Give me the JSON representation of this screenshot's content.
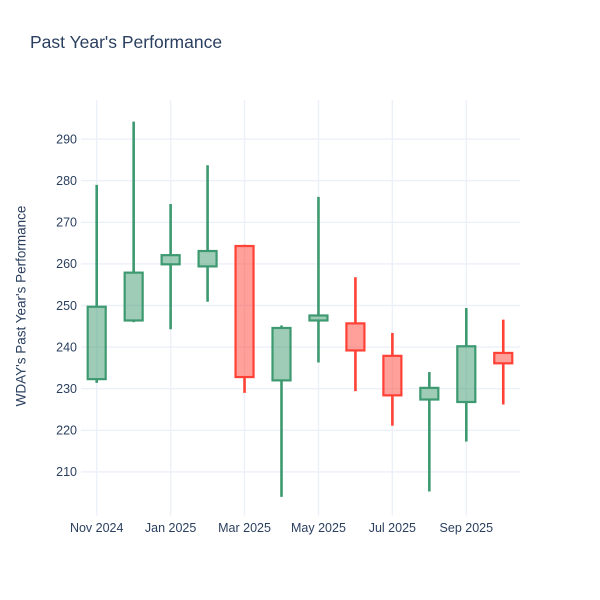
{
  "chart_data": {
    "type": "candlestick",
    "title": "Past Year's Performance",
    "ylabel": "WDAY's Past Year's Performance",
    "xlabel": "",
    "x_tick_labels": [
      "Nov 2024",
      "Jan 2025",
      "Mar 2025",
      "May 2025",
      "Jul 2025",
      "Sep 2025"
    ],
    "y_ticks": [
      210,
      220,
      230,
      240,
      250,
      260,
      270,
      280,
      290
    ],
    "ylim": [
      200.6,
      299.4
    ],
    "grid": true,
    "legend": "none",
    "increasing_color": "#3D9970",
    "decreasing_color": "#FF4136",
    "grid_color": "#ECF0F8",
    "text_color": "#2a3f5f",
    "background_color": "#ffffff",
    "candles": [
      {
        "month": "Nov 2024",
        "open": 232.3,
        "high": 279.0,
        "low": 231.4,
        "close": 249.7
      },
      {
        "month": "Dec 2024",
        "open": 246.4,
        "high": 294.2,
        "low": 246.0,
        "close": 257.9
      },
      {
        "month": "Jan 2025",
        "open": 259.9,
        "high": 274.4,
        "low": 244.3,
        "close": 262.1
      },
      {
        "month": "Feb 2025",
        "open": 259.4,
        "high": 283.7,
        "low": 250.9,
        "close": 263.1
      },
      {
        "month": "Mar 2025",
        "open": 264.3,
        "high": 264.6,
        "low": 229.0,
        "close": 232.8
      },
      {
        "month": "Apr 2025",
        "open": 232.0,
        "high": 245.2,
        "low": 204.0,
        "close": 244.6
      },
      {
        "month": "May 2025",
        "open": 246.4,
        "high": 276.1,
        "low": 236.3,
        "close": 247.6
      },
      {
        "month": "Jun 2025",
        "open": 245.7,
        "high": 256.8,
        "low": 229.4,
        "close": 239.2
      },
      {
        "month": "Jul 2025",
        "open": 237.9,
        "high": 243.4,
        "low": 221.1,
        "close": 228.4
      },
      {
        "month": "Aug 2025",
        "open": 227.4,
        "high": 234.0,
        "low": 205.3,
        "close": 230.2
      },
      {
        "month": "Sep 2025",
        "open": 226.8,
        "high": 249.4,
        "low": 217.3,
        "close": 240.2
      },
      {
        "month": "Oct 2025",
        "open": 238.6,
        "high": 246.6,
        "low": 226.2,
        "close": 236.1
      }
    ]
  }
}
